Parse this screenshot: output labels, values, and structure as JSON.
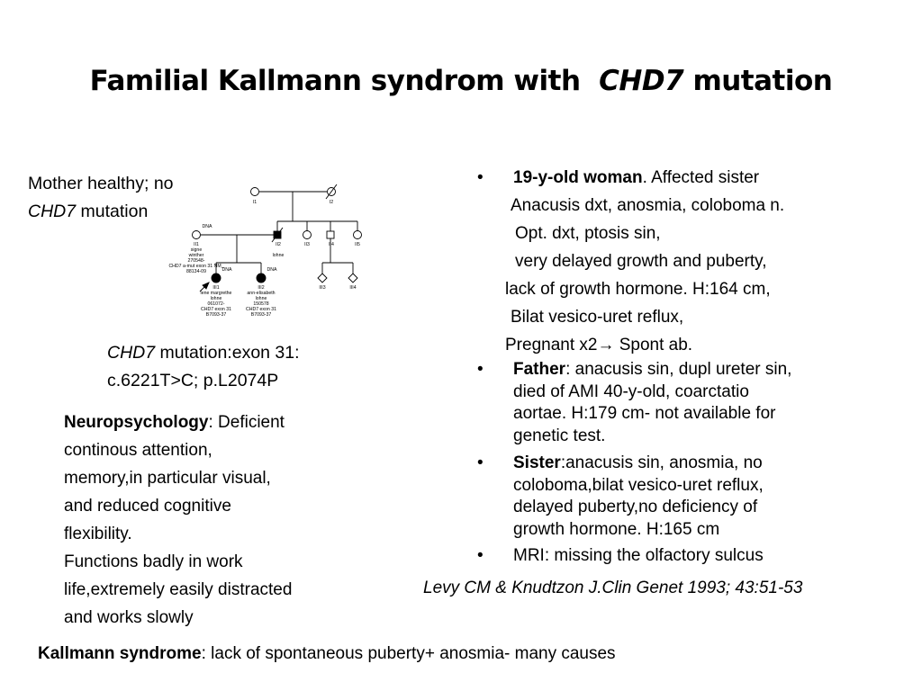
{
  "slide": {
    "title": {
      "pre": "Familial Kallmann syndrom with",
      "gene": "CHD7",
      "post": "mutation"
    },
    "mother_note": {
      "line1": "Mother healthy; no",
      "gene": "CHD7",
      "line2_rest": " mutation"
    },
    "mutation_note": {
      "gene": "CHD7",
      "line1_rest": " mutation:exon 31:",
      "line2": "c.6221T>C; p.L2074P"
    },
    "neuro": {
      "heading": "Neuropsychology",
      "lines": [
        ": Deficient",
        "continous attention,",
        "memory,in particular visual,",
        "and reduced cognitive",
        "flexibility.",
        "Functions badly in work",
        "life,extremely easily distracted",
        "and works slowly"
      ]
    },
    "case": {
      "bullet": "•",
      "head_bold": "19-y-old woman",
      "head_rest": ". Affected sister",
      "lines": [
        "Anacusis dxt, anosmia, coloboma n.",
        "Opt. dxt, ptosis sin,",
        "very delayed growth and puberty,",
        "lack of growth hormone. H:164 cm,",
        "Bilat vesico-uret reflux,",
        "Pregnant x2→ Spont ab."
      ]
    },
    "father": {
      "bold": "Father",
      "lines": [
        ": anacusis sin, dupl ureter sin,",
        "died of AMI 40-y-old, coarctatio",
        "aortae. H:179 cm- not available for",
        "genetic test."
      ]
    },
    "sister": {
      "bold": "Sister",
      "lines": [
        ":anacusis sin, anosmia, no",
        "coloboma,bilat vesico-uret reflux,",
        "delayed puberty,no deficiency of",
        "growth hormone. H:165 cm"
      ]
    },
    "mri": "MRI: missing  the olfactory sulcus",
    "citation": "Levy CM & Knudtzon J.Clin Genet 1993; 43:51-53",
    "bottom": {
      "bold": "Kallmann syndrome",
      "rest": ": lack of spontaneous  puberty+ anosmia- many causes"
    },
    "pedigree": {
      "I1": "I1",
      "I2": "I2",
      "II1": "II1",
      "II2": "II2",
      "II3": "II3",
      "II4": "II4",
      "II5": "II5",
      "III1": "III1",
      "III2": "III2",
      "III3": "III3",
      "III4": "III4",
      "dna": "DNA",
      "II2_name": "lohne",
      "II1_info": [
        "signe",
        "winther",
        "270548-",
        "CHD7 a-mut exon 31 NM_",
        "88134-09"
      ],
      "III1_info": [
        "lene margrethe",
        "lohne",
        "061072-",
        "CHD7 exon 31",
        "B7093-37"
      ],
      "III2_info": [
        "ann-elisabeth",
        "lohne",
        "150578",
        "CHD7 exon 31",
        "B7093-37"
      ]
    }
  }
}
